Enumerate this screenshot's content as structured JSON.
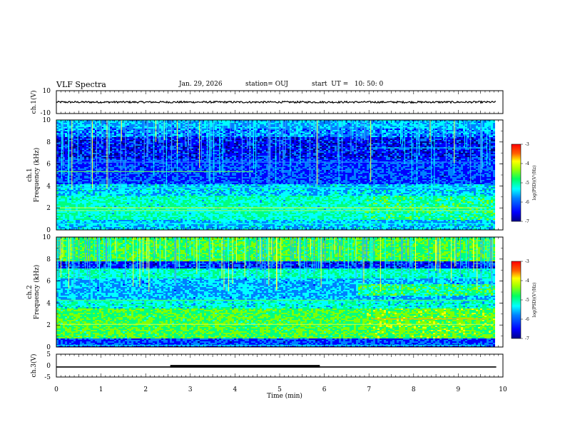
{
  "header": {
    "title": "VLF Spectra",
    "date": "Jan. 29, 2026",
    "station": "station= OUJ",
    "start": "start  UT =   10: 50: 0"
  },
  "chart_data": [
    {
      "type": "line",
      "name": "ch1-waveform",
      "ylabel": "ch.1(V)",
      "ylim": [
        -10,
        10
      ],
      "yticks": [
        "10",
        "-10"
      ],
      "x": [
        0,
        9.85
      ],
      "baseline_y": 0,
      "noise_amplitude": 0.8
    },
    {
      "type": "heatmap",
      "name": "ch1-spectrogram",
      "ylabel": "ch.1\nFrequency (kHz)",
      "ylim": [
        0,
        10
      ],
      "yticks": [
        "0",
        "2",
        "4",
        "6",
        "8",
        "10"
      ],
      "xlim": [
        0,
        10
      ],
      "colorbar": {
        "label": "log(PSD)(V²/Hz)",
        "range": [
          -7,
          -3
        ],
        "ticks": [
          "-3",
          "-4",
          "-5",
          "-6",
          "-7"
        ]
      }
    },
    {
      "type": "heatmap",
      "name": "ch2-spectrogram",
      "ylabel": "ch.2\nFrequency (kHz)",
      "ylim": [
        0,
        10
      ],
      "yticks": [
        "0",
        "2",
        "4",
        "6",
        "8",
        "10"
      ],
      "xlim": [
        0,
        10
      ],
      "colorbar": {
        "label": "log(PSD)(V²/Hz)",
        "range": [
          -7,
          -3
        ],
        "ticks": [
          "-3",
          "-4",
          "-5",
          "-6",
          "-7"
        ]
      }
    },
    {
      "type": "line",
      "name": "ch3-waveform",
      "ylabel": "ch.3(V)",
      "ylim": [
        -5,
        5
      ],
      "yticks": [
        "5",
        "0",
        "-5"
      ],
      "baseline_y": -0.6,
      "bold_segment_x": [
        2.55,
        5.9
      ],
      "x": [
        0,
        9.85
      ]
    }
  ],
  "xaxis": {
    "label": "Time (min)",
    "ticks": [
      "0",
      "1",
      "2",
      "3",
      "4",
      "5",
      "6",
      "7",
      "8",
      "9",
      "10"
    ],
    "range": [
      0,
      10
    ]
  },
  "colors": {
    "scale": [
      "#00008a",
      "#0000ff",
      "#0080ff",
      "#00ffff",
      "#00ff80",
      "#80ff00",
      "#ffff00",
      "#ff8000",
      "#ff0000"
    ]
  }
}
